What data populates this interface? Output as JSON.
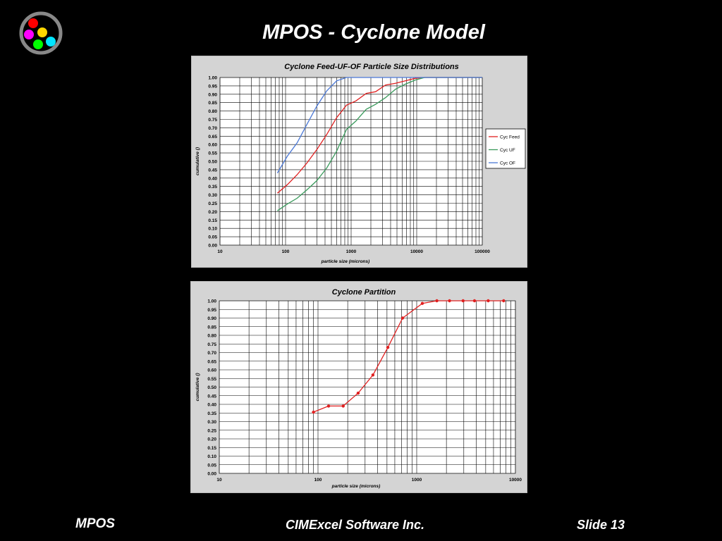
{
  "slide": {
    "title": "MPOS - Cyclone Model",
    "footer_left": "MPOS",
    "footer_center": "CIMExcel Software Inc.",
    "footer_right": "Slide 13"
  },
  "logo": {
    "icon": "colored-dots-logo-icon",
    "dot_colors": [
      "#ff0000",
      "#ffd700",
      "#ff00ff",
      "#00ff00",
      "#00e5ff"
    ],
    "ring_color": "#888888"
  },
  "chart_data": [
    {
      "type": "line",
      "title": "Cyclone Feed-UF-OF Particle Size Distributions",
      "xlabel": "particle size  (microns)",
      "ylabel": "cumulative ()",
      "x_scale": "log",
      "xlim": [
        10,
        100000
      ],
      "ylim": [
        0,
        1
      ],
      "x_ticks": [
        "10",
        "100",
        "1000",
        "10000",
        "100000"
      ],
      "y_ticks": [
        "0.00",
        "0.05",
        "0.10",
        "0.15",
        "0.20",
        "0.25",
        "0.30",
        "0.35",
        "0.40",
        "0.45",
        "0.50",
        "0.55",
        "0.60",
        "0.65",
        "0.70",
        "0.75",
        "0.80",
        "0.85",
        "0.90",
        "0.95",
        "1.00"
      ],
      "legend_position": "right",
      "grid": true,
      "series": [
        {
          "name": "Cyc Feed",
          "color": "#e02020",
          "x": [
            75,
            106,
            150,
            212,
            300,
            425,
            600,
            850,
            1180,
            1700,
            2360,
            3350,
            4750,
            6700,
            9500,
            13200,
            100000
          ],
          "y": [
            0.31,
            0.36,
            0.42,
            0.49,
            0.57,
            0.66,
            0.76,
            0.835,
            0.86,
            0.905,
            0.915,
            0.955,
            0.965,
            0.98,
            0.995,
            1.0,
            1.0
          ]
        },
        {
          "name": "Cyc UF",
          "color": "#3a9a5c",
          "x": [
            75,
            106,
            150,
            212,
            300,
            425,
            600,
            850,
            1180,
            1700,
            2360,
            3350,
            4750,
            6700,
            9500,
            13200,
            100000
          ],
          "y": [
            0.205,
            0.245,
            0.28,
            0.33,
            0.385,
            0.46,
            0.56,
            0.69,
            0.74,
            0.81,
            0.84,
            0.88,
            0.93,
            0.96,
            0.985,
            1.0,
            1.0
          ]
        },
        {
          "name": "Cyc OF",
          "color": "#4a78d6",
          "x": [
            75,
            106,
            150,
            212,
            300,
            425,
            600,
            850,
            1180,
            100000
          ],
          "y": [
            0.43,
            0.53,
            0.61,
            0.72,
            0.83,
            0.92,
            0.98,
            1.0,
            1.0,
            1.0
          ]
        }
      ]
    },
    {
      "type": "line",
      "title": "Cyclone Partition",
      "xlabel": "particle size  (microns)",
      "ylabel": "cumulative ()",
      "x_scale": "log",
      "xlim": [
        10,
        10000
      ],
      "ylim": [
        0,
        1
      ],
      "x_ticks": [
        "10",
        "100",
        "1000",
        "10000"
      ],
      "y_ticks": [
        "0.00",
        "0.05",
        "0.10",
        "0.15",
        "0.20",
        "0.25",
        "0.30",
        "0.35",
        "0.40",
        "0.45",
        "0.50",
        "0.55",
        "0.60",
        "0.65",
        "0.70",
        "0.75",
        "0.80",
        "0.85",
        "0.90",
        "0.95",
        "1.00"
      ],
      "grid": true,
      "series": [
        {
          "color": "#e02020",
          "markers": true,
          "x": [
            90,
            128,
            180,
            255,
            360,
            510,
            720,
            1140,
            1600,
            2150,
            2950,
            3850,
            5300,
            7600
          ],
          "y": [
            0.355,
            0.39,
            0.39,
            0.465,
            0.57,
            0.73,
            0.9,
            0.985,
            1.0,
            1.0,
            1.0,
            1.0,
            1.0,
            1.0
          ]
        }
      ]
    }
  ]
}
